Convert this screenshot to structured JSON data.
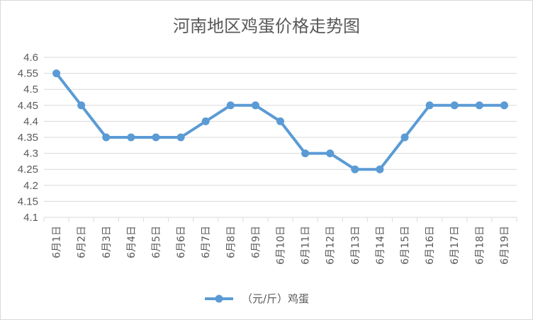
{
  "chart_data": {
    "type": "line",
    "title": "河南地区鸡蛋价格走势图",
    "categories": [
      "6月1日",
      "6月2日",
      "6月3日",
      "6月4日",
      "6月5日",
      "6月6日",
      "6月7日",
      "6月8日",
      "6月9日",
      "6月10日",
      "6月11日",
      "6月12日",
      "6月13日",
      "6月14日",
      "6月15日",
      "6月16日",
      "6月17日",
      "6月18日",
      "6月19日"
    ],
    "series": [
      {
        "name": "（元/斤）鸡蛋",
        "values": [
          4.55,
          4.45,
          4.35,
          4.35,
          4.35,
          4.35,
          4.4,
          4.45,
          4.45,
          4.4,
          4.3,
          4.3,
          4.25,
          4.25,
          4.35,
          4.45,
          4.45,
          4.45,
          4.45
        ],
        "color": "#5b9bd5"
      }
    ],
    "yticks": [
      "4.1",
      "4.15",
      "4.2",
      "4.25",
      "4.3",
      "4.35",
      "4.4",
      "4.45",
      "4.5",
      "4.55",
      "4.6"
    ],
    "ylim": [
      4.1,
      4.6
    ],
    "grid": true,
    "legend": "bottom-center"
  }
}
